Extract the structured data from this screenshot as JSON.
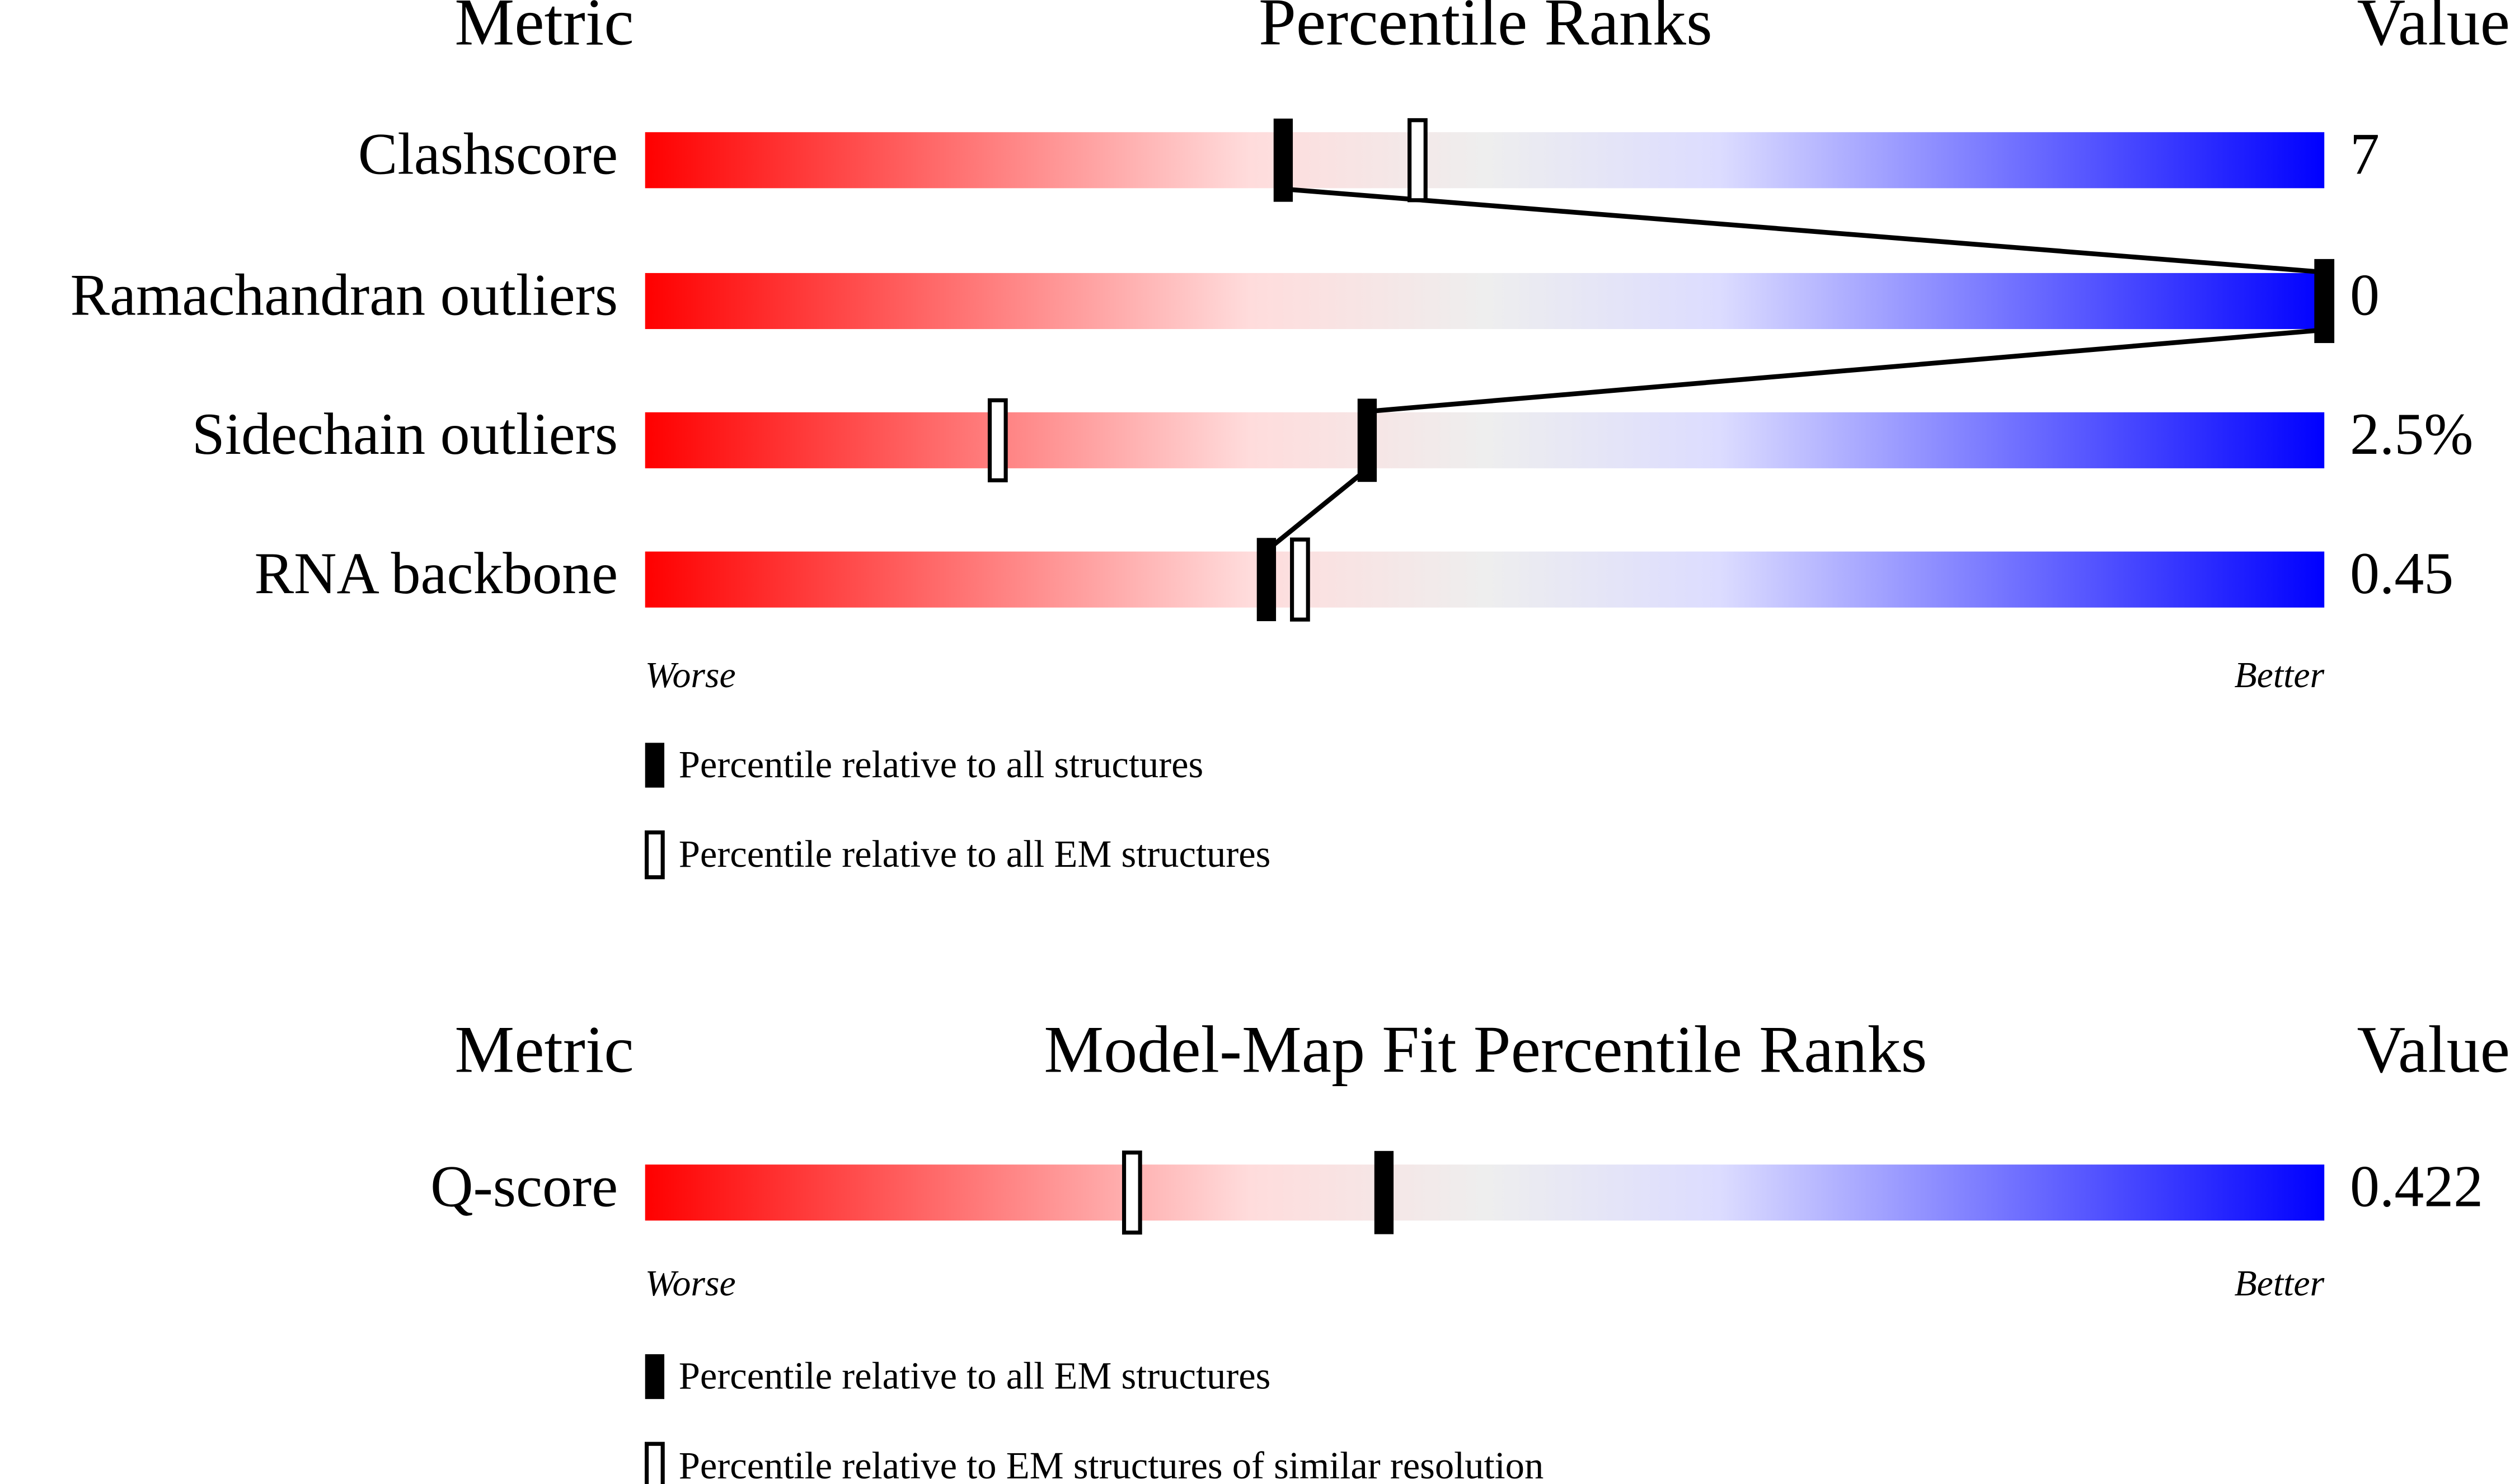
{
  "chart_data": [
    {
      "type": "percentile",
      "metric_header": "Metric",
      "title": "Percentile Ranks",
      "value_header": "Value",
      "categories": [
        "Clashscore",
        "Ramachandran outliers",
        "Sidechain outliers",
        "RNA backbone"
      ],
      "values": [
        7,
        0,
        2.5,
        0.45
      ],
      "value_labels": [
        "7",
        "0",
        "2.5%",
        "0.45"
      ],
      "xlim": [
        0,
        100
      ],
      "worse_label": "Worse",
      "better_label": "Better",
      "series": [
        {
          "name": "Percentile relative to all structures",
          "style": "filled",
          "color": "#000000",
          "values": [
            38,
            100,
            43,
            37
          ]
        },
        {
          "name": "Percentile relative to all EM structures",
          "style": "open",
          "color": "#000000",
          "values": [
            46,
            100,
            21,
            39
          ]
        }
      ]
    },
    {
      "type": "percentile",
      "metric_header": "Metric",
      "title": "Model-Map Fit Percentile Ranks",
      "value_header": "Value",
      "categories": [
        "Q-score"
      ],
      "values": [
        0.422
      ],
      "value_labels": [
        "0.422"
      ],
      "xlim": [
        0,
        100
      ],
      "worse_label": "Worse",
      "better_label": "Better",
      "series": [
        {
          "name": "Percentile relative to all EM structures",
          "style": "filled",
          "color": "#000000",
          "values": [
            44
          ]
        },
        {
          "name": "Percentile relative to EM structures of similar resolution",
          "style": "open",
          "color": "#000000",
          "values": [
            29
          ]
        }
      ]
    }
  ]
}
